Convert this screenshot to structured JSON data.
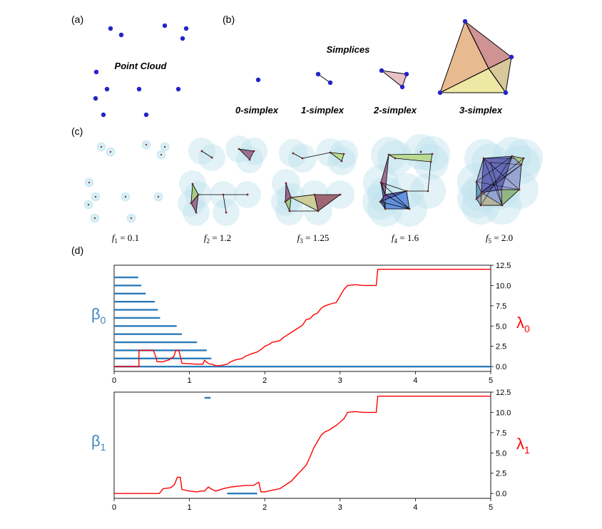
{
  "panel_a": {
    "label": "(a)",
    "title": "Point Cloud"
  },
  "panel_b": {
    "label": "(b)",
    "title": "Simplices",
    "simplices": [
      "0-simplex",
      "1-simplex",
      "2-simplex",
      "3-simplex"
    ]
  },
  "panel_c": {
    "label": "(c)",
    "filtrations": [
      {
        "name": "f",
        "sub": "1",
        "value": "= 0.1"
      },
      {
        "name": "f",
        "sub": "2",
        "value": "= 1.2"
      },
      {
        "name": "f",
        "sub": "3",
        "value": "= 1.25"
      },
      {
        "name": "f",
        "sub": "4",
        "value": "= 1.6"
      },
      {
        "name": "f",
        "sub": "5",
        "value": "= 2.0"
      }
    ]
  },
  "panel_d": {
    "label": "(d)"
  },
  "colors": {
    "barcode": "#2b7bb9",
    "lambda": "#ff0000",
    "point": "#2323c8",
    "disk": "#bfe3ee"
  },
  "chart_data": [
    {
      "type": "line",
      "left_label": "β",
      "left_label_sub": "0",
      "right_label": "λ",
      "right_label_sub": "0",
      "xlim": [
        0,
        5
      ],
      "x_ticks": [
        "0",
        "1",
        "2",
        "3",
        "4",
        "5"
      ],
      "ylim": [
        -0.6,
        12.5
      ],
      "y_ticks": [
        "0.0",
        "2.5",
        "5.0",
        "7.5",
        "10.0",
        "12.5"
      ],
      "barcode": [
        {
          "birth": 0,
          "death": 0.32
        },
        {
          "birth": 0,
          "death": 0.36
        },
        {
          "birth": 0,
          "death": 0.42
        },
        {
          "birth": 0,
          "death": 0.54
        },
        {
          "birth": 0,
          "death": 0.58
        },
        {
          "birth": 0,
          "death": 0.61
        },
        {
          "birth": 0,
          "death": 0.83
        },
        {
          "birth": 0,
          "death": 0.9
        },
        {
          "birth": 0,
          "death": 1.1
        },
        {
          "birth": 0,
          "death": 1.23
        },
        {
          "birth": 0,
          "death": 1.29
        },
        {
          "birth": 0,
          "death": 5
        }
      ],
      "series": [
        {
          "x": [
            0,
            0.33,
            0.33,
            0.52,
            0.55,
            0.57,
            0.64,
            0.72,
            0.79,
            0.82,
            0.86,
            0.9,
            1.1,
            1.12,
            1.18,
            1.2,
            1.22,
            1.25,
            1.28,
            1.3,
            1.35,
            1.4,
            1.5,
            1.55,
            1.6,
            1.7,
            1.75,
            1.8,
            1.9,
            1.95,
            2.0,
            2.05,
            2.1,
            2.2,
            2.25,
            2.3,
            2.35,
            2.4,
            2.45,
            2.5,
            2.55,
            2.6,
            2.65,
            2.7,
            2.75,
            2.8,
            2.9,
            2.95,
            3.0,
            3.05,
            3.1,
            3.2,
            3.3,
            3.48,
            3.5,
            5.0
          ],
          "y": [
            0,
            0,
            2.0,
            2.0,
            1.3,
            0.6,
            0.6,
            0.8,
            1.2,
            2.0,
            2.0,
            0.4,
            0.3,
            0.3,
            0.3,
            0.8,
            0.6,
            0.4,
            0.3,
            0.3,
            0.1,
            0.1,
            0.3,
            0.6,
            0.8,
            1.0,
            1.3,
            1.5,
            1.8,
            2.1,
            2.5,
            2.7,
            3.0,
            3.2,
            3.6,
            3.9,
            4.2,
            4.5,
            4.8,
            5.1,
            5.8,
            5.9,
            6.4,
            6.6,
            7.2,
            7.5,
            7.8,
            7.9,
            8.7,
            9.5,
            10.0,
            10.1,
            10.0,
            10.0,
            12.0,
            12.0
          ]
        }
      ]
    },
    {
      "type": "line",
      "left_label": "β",
      "left_label_sub": "1",
      "right_label": "λ",
      "right_label_sub": "1",
      "xlim": [
        0,
        5
      ],
      "x_ticks": [
        "0",
        "1",
        "2",
        "3",
        "4",
        "5"
      ],
      "ylim": [
        -0.6,
        12.5
      ],
      "y_ticks": [
        "0.0",
        "2.5",
        "5.0",
        "7.5",
        "10.0",
        "12.5"
      ],
      "barcode": [
        {
          "birth": 1.5,
          "death": 1.9
        },
        {
          "birth": 1.2,
          "death": 1.28
        }
      ],
      "barcode_levels": [
        0,
        11.8
      ],
      "series": [
        {
          "x": [
            0,
            0.6,
            0.65,
            0.75,
            0.8,
            0.84,
            0.88,
            0.9,
            1.0,
            1.1,
            1.15,
            1.2,
            1.25,
            1.3,
            1.35,
            1.45,
            1.55,
            1.65,
            1.75,
            1.85,
            1.92,
            1.95,
            2.0,
            2.1,
            2.2,
            2.3,
            2.35,
            2.4,
            2.45,
            2.5,
            2.55,
            2.6,
            2.65,
            2.7,
            2.75,
            2.8,
            2.85,
            2.9,
            2.95,
            3.0,
            3.05,
            3.1,
            3.2,
            3.3,
            3.48,
            3.5,
            5.0
          ],
          "y": [
            0,
            0,
            0.6,
            0.7,
            1.1,
            2.0,
            2.0,
            0.5,
            0.3,
            0.2,
            0.3,
            0.3,
            0.8,
            0.5,
            0.3,
            0.6,
            0.8,
            0.9,
            1.0,
            1.0,
            1.4,
            0.2,
            0.2,
            0.4,
            0.6,
            1.2,
            1.5,
            2.0,
            2.5,
            3.0,
            3.5,
            4.5,
            5.6,
            6.4,
            7.2,
            7.6,
            7.8,
            8.1,
            8.4,
            8.8,
            9.2,
            10.0,
            10.1,
            10.0,
            10.0,
            12.0,
            12.0
          ]
        }
      ]
    }
  ]
}
